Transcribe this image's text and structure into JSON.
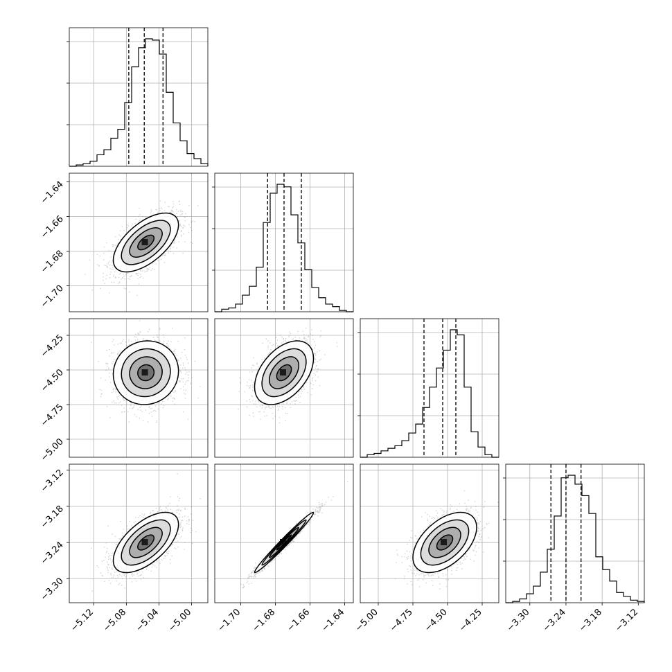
{
  "chart_data": {
    "type": "corner",
    "grid": true,
    "parameters": [
      {
        "range": [
          -5.15,
          -4.98
        ],
        "ticks": [
          "-5.12",
          "-5.08",
          "-5.04",
          "-5.00"
        ],
        "tick_values": [
          -5.12,
          -5.08,
          -5.04,
          -5.0
        ],
        "quantiles": [
          -5.077,
          -5.058,
          -5.035
        ],
        "hist": {
          "bin_start": -5.15,
          "bin_width": 0.0085,
          "counts": [
            0,
            1,
            2,
            4,
            9,
            13,
            22,
            29,
            50,
            78,
            93,
            100,
            99,
            88,
            58,
            34,
            20,
            10,
            6,
            2
          ]
        }
      },
      {
        "range": [
          -1.715,
          -1.635
        ],
        "ticks": [
          "-1.70",
          "-1.68",
          "-1.66",
          "-1.64"
        ],
        "tick_values": [
          -1.7,
          -1.68,
          -1.66,
          -1.64
        ],
        "quantiles": [
          -1.6845,
          -1.675,
          -1.665
        ],
        "hist": {
          "bin_start": -1.715,
          "bin_width": 0.004,
          "counts": [
            0,
            2,
            3,
            6,
            13,
            20,
            35,
            70,
            93,
            100,
            98,
            76,
            54,
            33,
            19,
            11,
            6,
            4,
            1,
            0
          ]
        }
      },
      {
        "range": [
          -5.13,
          -4.13
        ],
        "ticks": [
          "-5.00",
          "-4.75",
          "-4.50",
          "-4.25"
        ],
        "tick_values": [
          -5.0,
          -4.75,
          -4.5,
          -4.25
        ],
        "quantiles": [
          -4.67,
          -4.535,
          -4.44
        ],
        "hist": {
          "bin_start": -5.13,
          "bin_width": 0.05,
          "counts": [
            0,
            2,
            3,
            5,
            7,
            9,
            13,
            19,
            26,
            39,
            55,
            70,
            84,
            100,
            96,
            55,
            20,
            8,
            2,
            0
          ]
        }
      },
      {
        "range": [
          -3.34,
          -3.11
        ],
        "ticks": [
          "-3.30",
          "-3.24",
          "-3.18",
          "-3.12"
        ],
        "tick_values": [
          -3.3,
          -3.24,
          -3.18,
          -3.12
        ],
        "quantiles": [
          -3.265,
          -3.24,
          -3.215
        ],
        "hist": {
          "bin_start": -3.34,
          "bin_width": 0.0115,
          "counts": [
            0,
            1,
            3,
            7,
            13,
            24,
            42,
            68,
            98,
            100,
            93,
            84,
            70,
            36,
            26,
            17,
            8,
            5,
            2,
            1
          ]
        }
      }
    ],
    "pairs": [
      {
        "x": 0,
        "y": 1,
        "center": [
          -5.056,
          -1.675
        ],
        "sd": [
          0.02,
          0.0085
        ],
        "rho": 0.6
      },
      {
        "x": 0,
        "y": 2,
        "center": [
          -5.056,
          -4.52
        ],
        "sd": [
          0.02,
          0.115
        ],
        "rho": 0.05
      },
      {
        "x": 1,
        "y": 2,
        "center": [
          -1.675,
          -4.52
        ],
        "sd": [
          0.0085,
          0.115
        ],
        "rho": 0.45
      },
      {
        "x": 0,
        "y": 3,
        "center": [
          -5.056,
          -3.24
        ],
        "sd": [
          0.02,
          0.025
        ],
        "rho": 0.6
      },
      {
        "x": 1,
        "y": 3,
        "center": [
          -1.675,
          -3.24
        ],
        "sd": [
          0.0085,
          0.025
        ],
        "rho": 0.985
      },
      {
        "x": 2,
        "y": 3,
        "center": [
          -4.52,
          -3.24
        ],
        "sd": [
          0.115,
          0.025
        ],
        "rho": 0.5
      }
    ]
  }
}
